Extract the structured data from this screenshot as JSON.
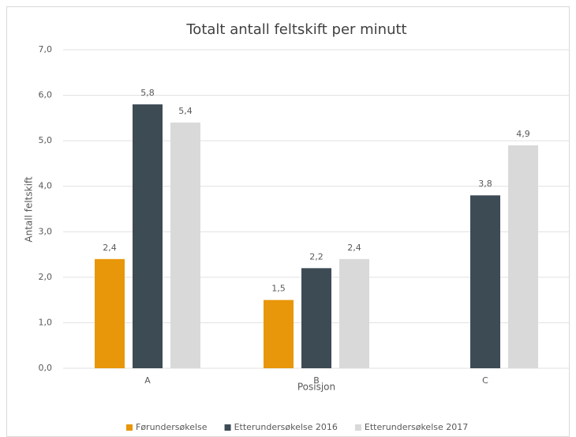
{
  "chart_data": {
    "type": "bar",
    "title": "Totalt antall feltskift per minutt",
    "x_label": "Posisjon",
    "y_label": "Antall feltskift",
    "categories": [
      "A",
      "B",
      "C"
    ],
    "series": [
      {
        "name": "Førundersøkelse",
        "color": "#e8960a",
        "values": [
          2.4,
          1.5,
          null
        ],
        "value_labels": [
          "2,4",
          "1,5",
          null
        ]
      },
      {
        "name": "Etterundersøkelse 2016",
        "color": "#3d4b55",
        "values": [
          5.8,
          2.2,
          3.8
        ],
        "value_labels": [
          "5,8",
          "2,2",
          "3,8"
        ]
      },
      {
        "name": "Etterundersøkelse 2017",
        "color": "#d9d9d9",
        "values": [
          5.4,
          2.4,
          4.9
        ],
        "value_labels": [
          "5,4",
          "2,4",
          "4,9"
        ]
      }
    ],
    "ylim": [
      0,
      7
    ],
    "yticks": [
      {
        "value": 0,
        "label": "0,0"
      },
      {
        "value": 1,
        "label": "1,0"
      },
      {
        "value": 2,
        "label": "2,0"
      },
      {
        "value": 3,
        "label": "3,0"
      },
      {
        "value": 4,
        "label": "4,0"
      },
      {
        "value": 5,
        "label": "5,0"
      },
      {
        "value": 6,
        "label": "6,0"
      },
      {
        "value": 7,
        "label": "7,0"
      }
    ],
    "grid": true,
    "legend": "bottom"
  }
}
